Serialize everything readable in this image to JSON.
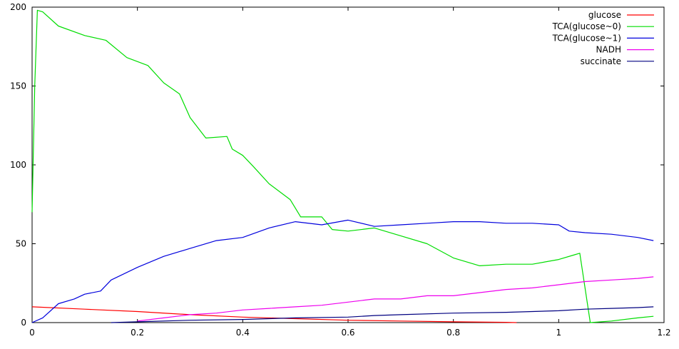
{
  "chart_data": {
    "type": "line",
    "title": "",
    "xlabel": "",
    "ylabel": "",
    "xlim": [
      0,
      1.2
    ],
    "ylim": [
      0,
      200
    ],
    "xticks": [
      0,
      0.2,
      0.4,
      0.6,
      0.8,
      1,
      1.2
    ],
    "xtick_labels": [
      "0",
      "0.2",
      "0.4",
      "0.6",
      "0.8",
      "1",
      "1.2"
    ],
    "yticks": [
      0,
      50,
      100,
      150,
      200
    ],
    "ytick_labels": [
      "0",
      "50",
      "100",
      "150",
      "200"
    ],
    "grid": false,
    "legend_position": "top-right",
    "series": [
      {
        "name": "glucose",
        "color": "#ff0000",
        "x": [
          0,
          0.1,
          0.2,
          0.3,
          0.4,
          0.5,
          0.6,
          0.7,
          0.8,
          0.9,
          0.92
        ],
        "y": [
          10,
          8.5,
          7,
          5,
          3.5,
          2.5,
          1.5,
          1,
          0.5,
          0.2,
          0
        ]
      },
      {
        "name": "TCA(glucose~0)",
        "color": "#00dd00",
        "x": [
          0,
          0.005,
          0.01,
          0.02,
          0.05,
          0.1,
          0.14,
          0.18,
          0.22,
          0.25,
          0.28,
          0.3,
          0.33,
          0.37,
          0.38,
          0.4,
          0.42,
          0.45,
          0.49,
          0.51,
          0.55,
          0.57,
          0.6,
          0.65,
          0.7,
          0.75,
          0.8,
          0.85,
          0.9,
          0.95,
          1,
          1.03,
          1.04,
          1.06,
          1.1,
          1.15,
          1.18
        ],
        "y": [
          70,
          150,
          198,
          197,
          188,
          182,
          179,
          168,
          163,
          152,
          145,
          130,
          117,
          118,
          110,
          106,
          99,
          88,
          78,
          67,
          67,
          59,
          58,
          60,
          55,
          50,
          41,
          36,
          37,
          37,
          40,
          43,
          44,
          0,
          1,
          3,
          4
        ]
      },
      {
        "name": "TCA(glucose~1)",
        "color": "#0000dd",
        "x": [
          0,
          0.02,
          0.05,
          0.08,
          0.1,
          0.13,
          0.15,
          0.2,
          0.25,
          0.3,
          0.35,
          0.4,
          0.45,
          0.5,
          0.55,
          0.6,
          0.65,
          0.7,
          0.75,
          0.8,
          0.85,
          0.9,
          0.95,
          1,
          1.02,
          1.05,
          1.1,
          1.15,
          1.18
        ],
        "y": [
          0,
          3,
          12,
          15,
          18,
          20,
          27,
          35,
          42,
          47,
          52,
          54,
          60,
          64,
          62,
          65,
          61,
          62,
          63,
          64,
          64,
          63,
          63,
          62,
          58,
          57,
          56,
          54,
          52
        ]
      },
      {
        "name": "NADH",
        "color": "#ee00ee",
        "x": [
          0.2,
          0.25,
          0.3,
          0.35,
          0.4,
          0.45,
          0.5,
          0.55,
          0.6,
          0.65,
          0.7,
          0.75,
          0.8,
          0.85,
          0.9,
          0.95,
          1,
          1.05,
          1.1,
          1.15,
          1.18
        ],
        "y": [
          1,
          3,
          5,
          6,
          8,
          9,
          10,
          11,
          13,
          15,
          15,
          17,
          17,
          19,
          21,
          22,
          24,
          26,
          27,
          28,
          29
        ]
      },
      {
        "name": "succinate",
        "color": "#000080",
        "x": [
          0.15,
          0.2,
          0.3,
          0.4,
          0.5,
          0.6,
          0.65,
          0.7,
          0.8,
          0.9,
          1,
          1.05,
          1.1,
          1.15,
          1.18
        ],
        "y": [
          0,
          0.5,
          1.5,
          2,
          3,
          3.5,
          4.5,
          5,
          6,
          6.5,
          7.5,
          8.5,
          9,
          9.5,
          10
        ]
      }
    ]
  }
}
